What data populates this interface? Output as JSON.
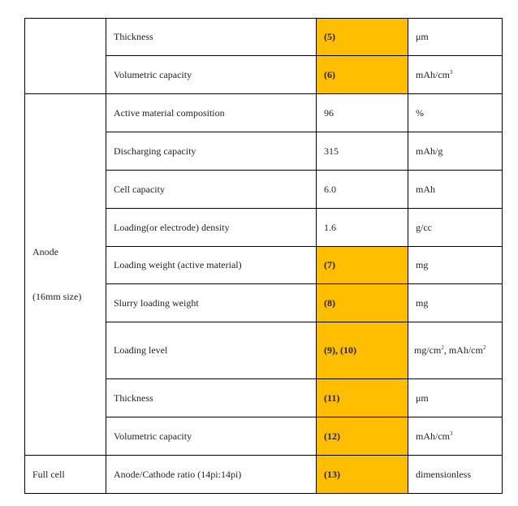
{
  "colors": {
    "highlight": "#ffbf00",
    "border": "#000000"
  },
  "groups": {
    "anode_line1": "Anode",
    "anode_line2": "(16mm size)",
    "full_cell": "Full cell"
  },
  "rows": [
    {
      "param": "Thickness",
      "value": "(5)",
      "unit": "μm",
      "highlight": true
    },
    {
      "param": "Volumetric capacity",
      "value": "(6)",
      "unit_base": "mAh/cm",
      "unit_sup": "3",
      "highlight": true
    },
    {
      "param": "Active material composition",
      "value": "96",
      "unit": "%",
      "highlight": false
    },
    {
      "param": "Discharging capacity",
      "value": "315",
      "unit": "mAh/g",
      "highlight": false
    },
    {
      "param": "Cell capacity",
      "value": "6.0",
      "unit": "mAh",
      "highlight": false
    },
    {
      "param": "Loading(or electrode) density",
      "value": "1.6",
      "unit": "g/cc",
      "highlight": false
    },
    {
      "param": "Loading weight (active material)",
      "value": "(7)",
      "unit": "mg",
      "highlight": true
    },
    {
      "param": "Slurry loading weight",
      "value": "(8)",
      "unit": "mg",
      "highlight": true
    },
    {
      "param": "Loading level",
      "value": "(9), (10)",
      "unit_a": "mg/cm",
      "unit_a_sup": "2",
      "unit_b": ", mAh/cm",
      "unit_b_sup": "2",
      "highlight": true
    },
    {
      "param": "Thickness",
      "value": "(11)",
      "unit": "μm",
      "highlight": true
    },
    {
      "param": "Volumetric capacity",
      "value": "(12)",
      "unit_base": "mAh/cm",
      "unit_sup": "3",
      "highlight": true
    },
    {
      "param": "Anode/Cathode ratio (14pi:14pi)",
      "value": "(13)",
      "unit": "dimensionless",
      "highlight": true
    }
  ]
}
